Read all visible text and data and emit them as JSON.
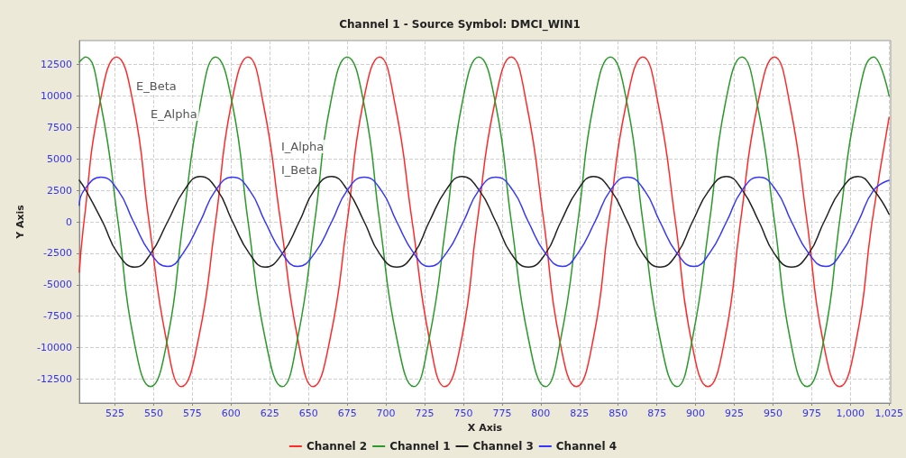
{
  "chart_data": {
    "type": "line",
    "title": "Channel 1 - Source Symbol: DMCI_WIN1",
    "xlabel": "X Axis",
    "ylabel": "Y Axis",
    "xlim": [
      502,
      1026
    ],
    "ylim": [
      -14400,
      14400
    ],
    "xticks": [
      525,
      550,
      575,
      600,
      625,
      650,
      675,
      700,
      725,
      750,
      775,
      800,
      825,
      850,
      875,
      900,
      925,
      950,
      975,
      {
        "value": 1000,
        "label": "1,000"
      },
      {
        "value": 1025,
        "label": "1,025"
      }
    ],
    "yticks": [
      -12500,
      -10000,
      -7500,
      -5000,
      -2500,
      0,
      2500,
      5000,
      7500,
      10000,
      12500
    ],
    "grid": true,
    "legend": "bottom",
    "marker": "none",
    "line_style": "solid",
    "annotations": [
      "E_Beta",
      "E_Alpha",
      "I_Alpha",
      "I_Beta"
    ],
    "series": [
      {
        "name": "Channel 2",
        "color": "#ff2a2a",
        "x": [
          502,
          505,
          515,
          526,
          537,
          547,
          558,
          568,
          579,
          590,
          600,
          611,
          621,
          632,
          643,
          653,
          664,
          675,
          685,
          696,
          706,
          717,
          728,
          738,
          749,
          759,
          770,
          781,
          791,
          802,
          812,
          823,
          834,
          844,
          855,
          866,
          876,
          887,
          897,
          908,
          919,
          929,
          940,
          951,
          961,
          972,
          982,
          993,
          1004,
          1014,
          1025
        ],
        "values": [
          -4000,
          0,
          9260,
          13100,
          9260,
          0,
          -9260,
          -13100,
          -9260,
          0,
          9260,
          13100,
          9260,
          0,
          -9260,
          -13100,
          -9260,
          0,
          9260,
          13100,
          9260,
          0,
          -9260,
          -13100,
          -9260,
          0,
          9260,
          13100,
          9260,
          0,
          -9260,
          -13100,
          -9260,
          0,
          9260,
          13100,
          9260,
          0,
          -9260,
          -13100,
          -9260,
          0,
          9260,
          13100,
          9260,
          0,
          -9260,
          -13100,
          -9260,
          0,
          8300
        ]
      },
      {
        "name": "Channel 1",
        "color": "#2a9a2a",
        "x": [
          502,
          506,
          516,
          527,
          537,
          548,
          559,
          569,
          580,
          590,
          601,
          611,
          622,
          633,
          643,
          654,
          664,
          675,
          686,
          696,
          707,
          718,
          728,
          739,
          749,
          760,
          771,
          781,
          792,
          803,
          813,
          824,
          834,
          845,
          856,
          866,
          877,
          888,
          898,
          909,
          919,
          930,
          940,
          951,
          961,
          972,
          983,
          993,
          1004,
          1015,
          1025
        ],
        "values": [
          12700,
          13100,
          9260,
          0,
          -9260,
          -13100,
          -9260,
          0,
          9260,
          13100,
          9260,
          0,
          -9260,
          -13100,
          -9260,
          0,
          9260,
          13100,
          9260,
          0,
          -9260,
          -13100,
          -9260,
          0,
          9260,
          13100,
          9260,
          0,
          -9260,
          -13100,
          -9260,
          0,
          9260,
          13100,
          9260,
          0,
          -9260,
          -13100,
          -9260,
          0,
          9260,
          13100,
          9260,
          0,
          -9260,
          -13100,
          -9260,
          0,
          9260,
          13100,
          10000
        ]
      },
      {
        "name": "Channel 3",
        "color": "#222222",
        "x": [
          502,
          506,
          517,
          527,
          538,
          548,
          559,
          570,
          580,
          591,
          601,
          612,
          622,
          633,
          644,
          654,
          665,
          675,
          686,
          696,
          707,
          718,
          728,
          739,
          749,
          760,
          771,
          781,
          792,
          803,
          813,
          824,
          834,
          845,
          856,
          866,
          877,
          888,
          898,
          909,
          920,
          930,
          941,
          951,
          962,
          973,
          983,
          994,
          1005,
          1015,
          1025
        ],
        "values": [
          3300,
          2550,
          0,
          -2550,
          -3600,
          -2550,
          0,
          2550,
          3600,
          2550,
          0,
          -2550,
          -3600,
          -2550,
          0,
          2550,
          3600,
          2550,
          0,
          -2550,
          -3600,
          -2550,
          0,
          2550,
          3600,
          2550,
          0,
          -2550,
          -3600,
          -2550,
          0,
          2550,
          3600,
          2550,
          0,
          -2550,
          -3600,
          -2550,
          0,
          2550,
          3600,
          2550,
          0,
          -2550,
          -3600,
          -2550,
          0,
          2550,
          3600,
          2550,
          600
        ]
      },
      {
        "name": "Channel 4",
        "color": "#3535ff",
        "x": [
          502,
          505,
          516,
          527,
          537,
          548,
          559,
          569,
          580,
          590,
          601,
          612,
          622,
          633,
          643,
          654,
          665,
          675,
          686,
          697,
          707,
          718,
          728,
          739,
          750,
          760,
          771,
          782,
          792,
          803,
          814,
          824,
          835,
          845,
          856,
          867,
          877,
          888,
          899,
          909,
          920,
          930,
          941,
          952,
          962,
          973,
          984,
          994,
          1005,
          1015,
          1025
        ],
        "values": [
          1300,
          2500,
          3550,
          2500,
          0,
          -2500,
          -3550,
          -2500,
          0,
          2500,
          3550,
          2500,
          0,
          -2500,
          -3550,
          -2500,
          0,
          2500,
          3550,
          2500,
          0,
          -2500,
          -3550,
          -2500,
          0,
          2500,
          3550,
          2500,
          0,
          -2500,
          -3550,
          -2500,
          0,
          2500,
          3550,
          2500,
          0,
          -2500,
          -3550,
          -2500,
          0,
          2500,
          3550,
          2500,
          0,
          -2500,
          -3550,
          -2500,
          0,
          2500,
          3300
        ]
      }
    ]
  }
}
